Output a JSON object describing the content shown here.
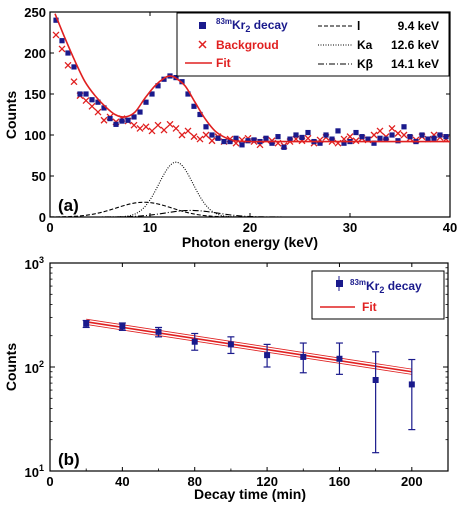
{
  "colors": {
    "kr_marker": "#1a1a8c",
    "background_marker": "#e02020",
    "fit_line": "#e02020",
    "decay_text": "#1a1a8c",
    "background_text": "#e02020"
  },
  "chart_data": [
    {
      "type": "scatter",
      "panel_label": "(a)",
      "xlabel": "Photon energy (keV)",
      "ylabel": "Counts",
      "xlim": [
        0,
        40
      ],
      "ylim": [
        0,
        250
      ],
      "xticks": [
        "0",
        "10",
        "20",
        "30",
        "40"
      ],
      "yticks": [
        "0",
        "50",
        "100",
        "150",
        "200",
        "250"
      ],
      "legend_position": "top-right",
      "legend_left": [
        {
          "label_html": "83mKr2 decay",
          "marker": "square"
        },
        {
          "label_html": "Backgroud",
          "marker": "x"
        },
        {
          "label_html": "Fit",
          "marker": "line"
        }
      ],
      "legend_right": [
        {
          "label": "I",
          "value": "9.4 keV",
          "style": "dashed"
        },
        {
          "label": "Kα",
          "value": "12.6 keV",
          "style": "dotted"
        },
        {
          "label": "Kβ",
          "value": "14.1 keV",
          "style": "dashdot"
        }
      ],
      "legend_text": {
        "kr_super": "83m",
        "kr_main": "Kr",
        "kr_sub": "2",
        "kr_tail": " decay",
        "bg": "Backgroud",
        "fit": "Fit",
        "l_label": "l",
        "l_value": "9.4 keV",
        "ka_label": "Ka",
        "ka_value": "12.6 keV",
        "kb_label": "Kβ",
        "kb_value": "14.1 keV"
      },
      "series": [
        {
          "name": "83mKr2 decay",
          "marker": "square",
          "x": [
            0.6,
            1.2,
            1.8,
            2.4,
            3.0,
            3.6,
            4.2,
            4.8,
            5.4,
            6.0,
            6.6,
            7.2,
            7.8,
            8.4,
            9.0,
            9.6,
            10.2,
            10.8,
            11.4,
            12.0,
            12.6,
            13.2,
            13.8,
            14.4,
            15.0,
            15.6,
            16.2,
            16.8,
            17.4,
            18.0,
            18.6,
            19.2,
            19.8,
            20.4,
            21.0,
            21.6,
            22.2,
            22.8,
            23.4,
            24.0,
            24.6,
            25.2,
            25.8,
            26.4,
            27.0,
            27.6,
            28.2,
            28.8,
            29.4,
            30.0,
            30.6,
            31.2,
            31.8,
            32.4,
            33.0,
            33.6,
            34.2,
            34.8,
            35.4,
            36.0,
            36.6,
            37.2,
            37.8,
            38.4,
            39.0,
            39.6
          ],
          "y": [
            240,
            215,
            200,
            183,
            150,
            150,
            143,
            140,
            133,
            120,
            113,
            117,
            118,
            122,
            128,
            140,
            150,
            160,
            168,
            172,
            170,
            165,
            150,
            135,
            125,
            110,
            100,
            96,
            92,
            92,
            96,
            88,
            93,
            94,
            92,
            96,
            90,
            98,
            85,
            95,
            100,
            97,
            103,
            92,
            90,
            100,
            95,
            105,
            90,
            92,
            103,
            98,
            95,
            90,
            96,
            95,
            100,
            93,
            110,
            98,
            92,
            100,
            95,
            96,
            100,
            98
          ]
        },
        {
          "name": "Backgroud",
          "marker": "x",
          "x": [
            0.6,
            1.2,
            1.8,
            2.4,
            3.0,
            3.6,
            4.2,
            4.8,
            5.4,
            6.0,
            6.6,
            7.2,
            7.8,
            8.4,
            9.0,
            9.6,
            10.2,
            10.8,
            11.4,
            12.0,
            12.6,
            13.2,
            13.8,
            14.4,
            15.0,
            15.6,
            16.2,
            16.8,
            17.4,
            18.0,
            18.6,
            19.2,
            19.8,
            20.4,
            21.0,
            21.6,
            22.2,
            22.8,
            23.4,
            24.0,
            24.6,
            25.2,
            25.8,
            26.4,
            27.0,
            27.6,
            28.2,
            28.8,
            29.4,
            30.0,
            30.6,
            31.2,
            31.8,
            32.4,
            33.0,
            33.6,
            34.2,
            34.8,
            35.4,
            36.0,
            36.6,
            37.2,
            37.8,
            38.4,
            39.0,
            39.6
          ],
          "y": [
            222,
            205,
            185,
            165,
            148,
            142,
            135,
            128,
            118,
            122,
            116,
            120,
            117,
            112,
            108,
            110,
            105,
            112,
            106,
            113,
            108,
            100,
            105,
            98,
            95,
            100,
            93,
            98,
            92,
            95,
            90,
            94,
            96,
            92,
            88,
            94,
            93,
            90,
            87,
            92,
            95,
            93,
            96,
            90,
            94,
            97,
            92,
            90,
            95,
            98,
            93,
            96,
            94,
            100,
            105,
            98,
            108,
            102,
            100,
            96,
            94,
            98,
            95,
            100,
            97,
            95
          ]
        }
      ],
      "fit_curve": {
        "name": "Fit",
        "x": [
          0.5,
          1.5,
          2.5,
          3.5,
          4.5,
          5.5,
          6.5,
          7.5,
          8.5,
          9.5,
          10.5,
          11.5,
          12.0,
          12.5,
          13.5,
          14.5,
          15.5,
          16.5,
          17.5,
          18.5,
          20,
          22,
          25,
          30,
          35,
          40
        ],
        "y": [
          248,
          218,
          190,
          165,
          148,
          135,
          125,
          122,
          128,
          145,
          160,
          170,
          172,
          170,
          160,
          140,
          120,
          105,
          97,
          93,
          92,
          92,
          92,
          92,
          92,
          92
        ]
      },
      "components": [
        {
          "name": "l",
          "center_keV": 9.4,
          "amplitude": 18,
          "sigma_keV": 2.8,
          "style": "dashed"
        },
        {
          "name": "Ka",
          "center_keV": 12.6,
          "amplitude": 67,
          "sigma_keV": 1.7,
          "style": "dotted"
        },
        {
          "name": "Kb",
          "center_keV": 14.1,
          "amplitude": 8,
          "sigma_keV": 2.6,
          "style": "dashdot"
        }
      ]
    },
    {
      "type": "scatter",
      "panel_label": "(b)",
      "xlabel": "Decay time (min)",
      "ylabel": "Counts",
      "xlim": [
        0,
        220
      ],
      "ylim": [
        10,
        1000
      ],
      "yscale": "log",
      "xticks": [
        "0",
        "40",
        "80",
        "120",
        "160",
        "200"
      ],
      "ytick_exponents": [
        "3",
        "2",
        "1"
      ],
      "ytick_base": "10",
      "legend_position": "top-right",
      "legend_text": {
        "kr_super": "83m",
        "kr_main": "Kr",
        "kr_sub": "2",
        "kr_tail": " decay",
        "fit": "Fit"
      },
      "series": [
        {
          "name": "83mKr2 decay",
          "marker": "square",
          "x": [
            20,
            40,
            60,
            80,
            100,
            120,
            140,
            160,
            180,
            200
          ],
          "y": [
            260,
            245,
            218,
            175,
            165,
            130,
            125,
            120,
            75,
            68
          ],
          "err_low": [
            240,
            225,
            195,
            145,
            135,
            100,
            88,
            85,
            15,
            25
          ],
          "err_high": [
            280,
            265,
            240,
            210,
            195,
            165,
            170,
            170,
            140,
            118
          ]
        }
      ],
      "fit_curve": {
        "name": "Fit",
        "x": [
          20,
          200
        ],
        "y": [
          272,
          90
        ],
        "band_halfwidth_factor": 1.06
      }
    }
  ]
}
